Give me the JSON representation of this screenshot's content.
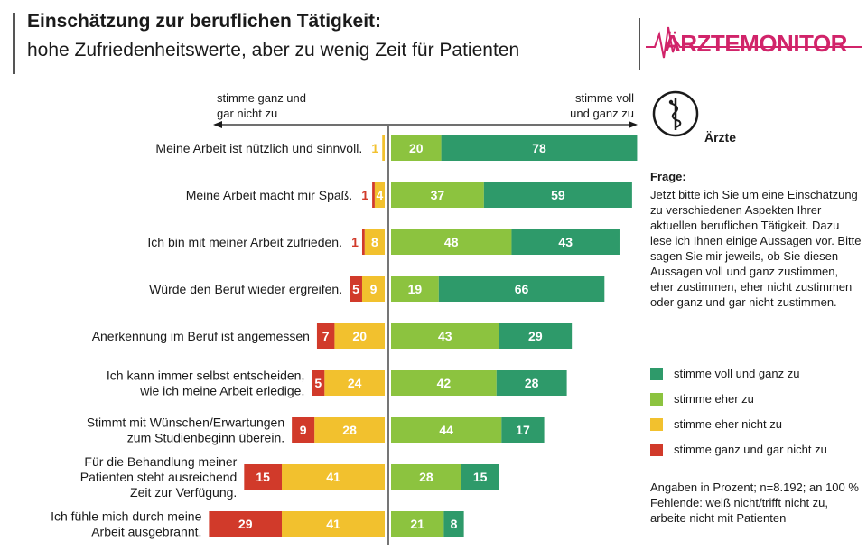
{
  "header": {
    "title": "Einschätzung zur beruflichen Tätigkeit:",
    "subtitle": "hohe Zufriedenheitswerte, aber zu wenig Zeit für Patienten",
    "logo_text": "ÄRZTEMONITOR"
  },
  "axis": {
    "left_label": "stimme ganz und gar nicht zu",
    "right_label": "stimme voll und ganz zu"
  },
  "group_label": "Ärzte",
  "question": {
    "title": "Frage:",
    "text": "Jetzt bitte ich Sie um eine Einschätzung zu verschiedenen Aspekten Ihrer aktuellen beruflichen Tätigkeit. Dazu lese ich Ihnen einige Aussagen vor. Bitte sagen Sie mir jeweils, ob Sie diesen Aussagen voll und ganz zustimmen, eher zustimmen, eher nicht zustimmen oder ganz und gar nicht zustimmen."
  },
  "legend": [
    {
      "label": "stimme voll und ganz zu",
      "color": "#2e9a6a"
    },
    {
      "label": "stimme eher zu",
      "color": "#8cc33f"
    },
    {
      "label": "stimme eher nicht zu",
      "color": "#f2c12e"
    },
    {
      "label": "stimme ganz und gar nicht zu",
      "color": "#d13a2a"
    }
  ],
  "note": "Angaben in Prozent; n=8.192; an 100 % Fehlende: weiß nicht/trifft nicht zu, arbeite nicht mit Patienten",
  "chart_data": {
    "type": "bar",
    "orientation": "horizontal-diverging",
    "categories": [
      [
        "Meine Arbeit ist nützlich und sinnvoll."
      ],
      [
        "Meine Arbeit macht mir Spaß."
      ],
      [
        "Ich bin mit meiner Arbeit zufrieden."
      ],
      [
        "Würde den Beruf wieder ergreifen."
      ],
      [
        "Anerkennung im Beruf ist angemessen"
      ],
      [
        "Ich kann immer selbst entscheiden,",
        "wie ich meine Arbeit erledige."
      ],
      [
        "Stimmt mit Wünschen/Erwartungen",
        "zum Studienbeginn überein."
      ],
      [
        "Für die Behandlung meiner",
        "Patienten steht ausreichend",
        "Zeit zur Verfügung."
      ],
      [
        "Ich fühle mich durch  meine",
        "Arbeit ausgebrannt."
      ]
    ],
    "series": [
      {
        "name": "stimme ganz und gar nicht zu",
        "color": "#d13a2a",
        "values": [
          null,
          1,
          1,
          5,
          7,
          5,
          9,
          15,
          29
        ]
      },
      {
        "name": "stimme eher nicht zu",
        "color": "#f2c12e",
        "values": [
          1,
          4,
          8,
          9,
          20,
          24,
          28,
          41,
          41
        ]
      },
      {
        "name": "stimme eher zu",
        "color": "#8cc33f",
        "values": [
          20,
          37,
          48,
          19,
          43,
          42,
          44,
          28,
          21
        ]
      },
      {
        "name": "stimme voll und ganz zu",
        "color": "#2e9a6a",
        "values": [
          78,
          59,
          43,
          66,
          29,
          28,
          17,
          15,
          8
        ]
      }
    ],
    "title": "Einschätzung zur beruflichen Tätigkeit",
    "xlabel": "Angaben in Prozent",
    "unit": "%"
  }
}
